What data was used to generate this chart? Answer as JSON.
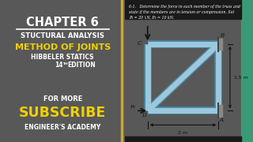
{
  "bg_left": "#585858",
  "bg_right": "#f5f2e8",
  "bg_teal": "#3a9a78",
  "bg_dark_bar": "#1a1a1a",
  "chapter_text": "CHAPTER 6",
  "sub1": "STUCTURAL ANALYSIS",
  "method": "METHOD OF JOINTS",
  "hibbeler": "HIBBELER STATICS",
  "for_more": "FOR MORE",
  "subscribe": "SUBSCRIBE",
  "academy": "ENGINEER'S ACADEMY",
  "problem_line1": "6-1.   Determine the force in each member of the truss and",
  "problem_line2": "state if the members are in tension or compression. Set",
  "problem_line3": "P₁ = 20 kN, P₂ = 10 kN.",
  "truss_fill": "#9dc8dc",
  "truss_edge": "#4a8aaa",
  "dim_h": "2 m",
  "dim_v": "1.5 m",
  "yellow": "#f0d000",
  "white": "#ffffff",
  "divider_gold": "#c8a832",
  "divider_teal": "#3a9a78"
}
